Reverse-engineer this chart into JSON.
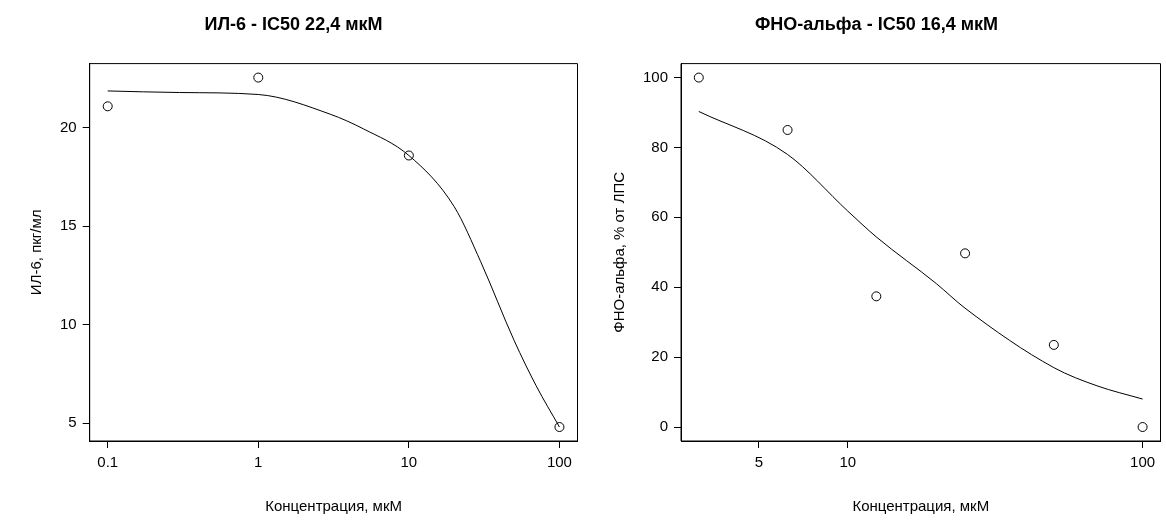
{
  "chart_data": [
    {
      "type": "scatter",
      "title": "ИЛ-6 - IC50 22,4 мкМ",
      "xlabel": "Концентрация, мкМ",
      "ylabel": "ИЛ-6, пкг/мл",
      "log": "x",
      "grid": false,
      "legend": false,
      "xlim": [
        0.0759,
        131.8
      ],
      "xticks": [
        0.1,
        1,
        10,
        100
      ],
      "ylim": [
        4.09,
        23.27
      ],
      "yticks": [
        5,
        10,
        15,
        20
      ],
      "series": [
        {
          "marker": "circle",
          "color": "#000000",
          "x": [
            0.1,
            1,
            10,
            100
          ],
          "values": [
            21.1,
            22.56,
            18.6,
            4.8
          ]
        },
        {
          "type": "line",
          "marker": "none",
          "line_style": "solid",
          "color": "#000000",
          "x": [
            0.1,
            0.3,
            1,
            3,
            5,
            10,
            20,
            30,
            50,
            70,
            100
          ],
          "values": [
            21.88,
            21.8,
            21.7,
            20.7,
            19.95,
            18.6,
            16.0,
            13.2,
            9.2,
            6.9,
            4.8
          ]
        }
      ]
    },
    {
      "type": "scatter",
      "title": "ФНО-альфа - IC50 16,4 мкМ",
      "xlabel": "Концентрация, мкМ",
      "ylabel": "ФНО-альфа, % от ЛПС",
      "log": "x",
      "grid": false,
      "legend": false,
      "xlim": [
        2.72,
        115
      ],
      "xticks": [
        5,
        10,
        100
      ],
      "ylim": [
        -4,
        104
      ],
      "yticks": [
        0,
        20,
        40,
        60,
        80,
        100
      ],
      "series": [
        {
          "marker": "circle",
          "color": "#000000",
          "x": [
            3.125,
            6.25,
            12.5,
            25,
            50,
            100
          ],
          "values": [
            100,
            85,
            37.4,
            49.7,
            23.5,
            0
          ]
        },
        {
          "type": "line",
          "marker": "none",
          "line_style": "solid",
          "color": "#000000",
          "x": [
            3.125,
            6.25,
            10,
            12.5,
            20,
            25,
            50,
            70,
            100
          ],
          "values": [
            90.3,
            78,
            61.8,
            54.4,
            41,
            34,
            17,
            11.8,
            8
          ]
        }
      ]
    }
  ]
}
